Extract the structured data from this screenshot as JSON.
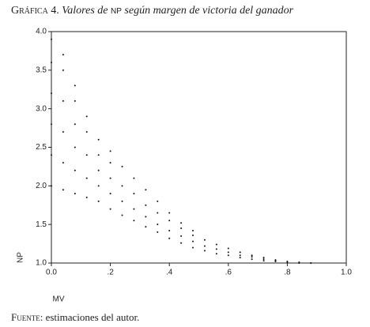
{
  "chart_data": {
    "type": "scatter",
    "title": {
      "label": "Gráfica 4.",
      "text1": "Valores de",
      "abbr": "NP",
      "text2": "según margen de victoria del ganador"
    },
    "x_label": "MV",
    "y_label": "NP",
    "note": {
      "label": "Fuente:",
      "text": "estimaciones del autor."
    },
    "color": "#111",
    "xlim": [
      0,
      1
    ],
    "ylim": [
      1,
      4
    ],
    "xticks": [
      {
        "value": 0,
        "label": "0.0"
      },
      {
        "value": 0.2,
        "label": ".2"
      },
      {
        "value": 0.4,
        "label": ".4"
      },
      {
        "value": 0.6,
        "label": ".6"
      },
      {
        "value": 0.8,
        "label": ".8"
      },
      {
        "value": 1,
        "label": "1.0"
      }
    ],
    "yticks": [
      {
        "value": 1,
        "label": "1.0"
      },
      {
        "value": 1.5,
        "label": "1.5"
      },
      {
        "value": 2,
        "label": "2.0"
      },
      {
        "value": 2.5,
        "label": "2.5"
      },
      {
        "value": 3,
        "label": "3.0"
      },
      {
        "value": 3.5,
        "label": "3.5"
      },
      {
        "value": 4,
        "label": "4.0"
      }
    ],
    "x": [
      0,
      0,
      0,
      0,
      0,
      0,
      0.04,
      0.04,
      0.04,
      0.04,
      0.04,
      0.04,
      0.08,
      0.08,
      0.08,
      0.08,
      0.08,
      0.08,
      0.12,
      0.12,
      0.12,
      0.12,
      0.12,
      0.16,
      0.16,
      0.16,
      0.16,
      0.16,
      0.2,
      0.2,
      0.2,
      0.2,
      0.2,
      0.24,
      0.24,
      0.24,
      0.24,
      0.28,
      0.28,
      0.28,
      0.28,
      0.32,
      0.32,
      0.32,
      0.32,
      0.36,
      0.36,
      0.36,
      0.36,
      0.4,
      0.4,
      0.4,
      0.4,
      0.44,
      0.44,
      0.44,
      0.44,
      0.48,
      0.48,
      0.48,
      0.48,
      0.52,
      0.52,
      0.52,
      0.56,
      0.56,
      0.56,
      0.6,
      0.6,
      0.6,
      0.64,
      0.64,
      0.64,
      0.68,
      0.68,
      0.68,
      0.72,
      0.72,
      0.72,
      0.76,
      0.76,
      0.76,
      0.8,
      0.8,
      0.84,
      0.84,
      0.88,
      0.88
    ],
    "values": [
      2.0,
      2.4,
      2.8,
      3.2,
      3.6,
      3.9,
      1.95,
      2.3,
      2.7,
      3.1,
      3.5,
      3.7,
      1.9,
      2.2,
      2.5,
      2.8,
      3.1,
      3.3,
      1.85,
      2.1,
      2.4,
      2.7,
      2.9,
      1.8,
      2.0,
      2.2,
      2.4,
      2.6,
      1.7,
      1.9,
      2.1,
      2.3,
      2.45,
      1.62,
      1.8,
      2.0,
      2.25,
      1.55,
      1.7,
      1.9,
      2.1,
      1.47,
      1.6,
      1.75,
      1.95,
      1.4,
      1.5,
      1.65,
      1.8,
      1.32,
      1.42,
      1.55,
      1.65,
      1.26,
      1.35,
      1.45,
      1.52,
      1.2,
      1.28,
      1.36,
      1.42,
      1.16,
      1.22,
      1.3,
      1.12,
      1.18,
      1.24,
      1.1,
      1.14,
      1.19,
      1.07,
      1.1,
      1.14,
      1.05,
      1.08,
      1.1,
      1.03,
      1.05,
      1.07,
      1.02,
      1.03,
      1.04,
      1.01,
      1.02,
      1.0,
      1.01,
      1.0,
      1.0
    ]
  }
}
